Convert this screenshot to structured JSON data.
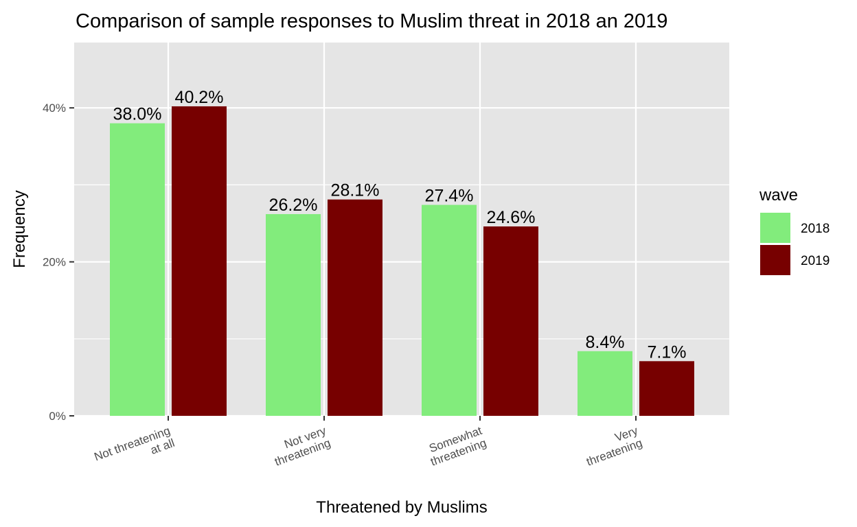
{
  "chart_data": {
    "type": "bar",
    "title": "Comparison of sample responses to Muslim threat in 2018 an 2019",
    "xlabel": "Threatened by Muslims",
    "ylabel": "Frequency",
    "categories": [
      [
        "Not threatening",
        "at all"
      ],
      [
        "Not very",
        "threatening"
      ],
      [
        "Somewhat",
        "threatening"
      ],
      [
        "Very",
        "threatening"
      ]
    ],
    "series": [
      {
        "name": "2018",
        "color": "#82ec7c",
        "values": [
          38.0,
          26.2,
          27.4,
          8.4
        ],
        "labels": [
          "38.0%",
          "26.2%",
          "27.4%",
          "8.4%"
        ]
      },
      {
        "name": "2019",
        "color": "#770000",
        "values": [
          40.2,
          28.1,
          24.6,
          7.1
        ],
        "labels": [
          "40.2%",
          "28.1%",
          "24.6%",
          "7.1%"
        ]
      }
    ],
    "yticks": [
      0,
      20,
      40
    ],
    "ytick_labels": [
      "0%",
      "20%",
      "40%"
    ],
    "ylim": [
      0,
      40.2
    ],
    "grid": true,
    "legend": {
      "title": "wave",
      "position": "right"
    }
  }
}
